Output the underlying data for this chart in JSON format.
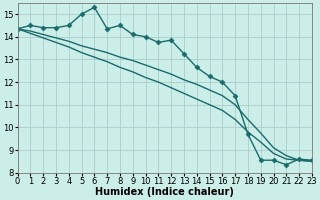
{
  "xlabel": "Humidex (Indice chaleur)",
  "background_color": "#cceee8",
  "grid_color": "#aacccc",
  "line_color": "#1a6b6b",
  "xlim": [
    0,
    23
  ],
  "ylim": [
    8,
    15.5
  ],
  "xticks": [
    0,
    1,
    2,
    3,
    4,
    5,
    6,
    7,
    8,
    9,
    10,
    11,
    12,
    13,
    14,
    15,
    16,
    17,
    18,
    19,
    20,
    21,
    22,
    23
  ],
  "yticks": [
    8,
    9,
    10,
    11,
    12,
    13,
    14,
    15
  ],
  "line1_x": [
    0,
    1,
    2,
    3,
    4,
    5,
    6,
    7,
    8,
    9,
    10,
    11,
    12,
    13,
    14,
    15,
    16,
    17,
    18,
    19,
    20,
    21,
    22,
    23
  ],
  "line1_y": [
    14.35,
    14.5,
    14.4,
    14.4,
    14.5,
    15.0,
    15.3,
    14.35,
    14.5,
    14.1,
    14.0,
    13.75,
    13.85,
    13.25,
    12.65,
    12.25,
    12.0,
    11.4,
    9.7,
    8.55,
    8.55,
    8.35,
    8.6,
    8.55
  ],
  "line2_x": [
    0,
    1,
    2,
    3,
    4,
    5,
    6,
    7,
    8,
    9,
    10,
    11,
    12,
    13,
    14,
    15,
    16,
    17,
    18,
    19,
    20,
    21,
    22,
    23
  ],
  "line2_y": [
    14.35,
    14.15,
    13.95,
    13.75,
    13.55,
    13.3,
    13.1,
    12.9,
    12.65,
    12.45,
    12.2,
    12.0,
    11.75,
    11.5,
    11.25,
    11.0,
    10.75,
    10.35,
    9.8,
    9.35,
    8.85,
    8.6,
    8.55,
    8.5
  ],
  "line3_x": [
    0,
    1,
    2,
    3,
    4,
    5,
    6,
    7,
    8,
    9,
    10,
    11,
    12,
    13,
    14,
    15,
    16,
    17,
    18,
    19,
    20,
    21,
    22,
    23
  ],
  "line3_y": [
    14.35,
    14.25,
    14.1,
    13.95,
    13.8,
    13.6,
    13.45,
    13.3,
    13.1,
    12.95,
    12.75,
    12.55,
    12.35,
    12.1,
    11.9,
    11.65,
    11.4,
    11.0,
    10.35,
    9.75,
    9.1,
    8.75,
    8.55,
    8.5
  ],
  "marker": "D",
  "marker_size": 2.5,
  "line_width": 1.0,
  "font_size_label": 7,
  "font_size_tick": 6
}
